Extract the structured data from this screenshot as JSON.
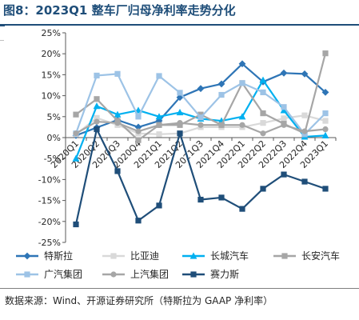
{
  "header": {
    "title": "图8：2023Q1 整车厂归母净利率走势分化"
  },
  "footer": {
    "source": "数据来源：Wind、开源证券研究所（特斯拉为 GAAP 净利率）"
  },
  "chart_data": {
    "type": "line",
    "categories": [
      "2020Q1",
      "2020Q2",
      "2020Q3",
      "2020Q4",
      "2021Q1",
      "2021Q2",
      "2021Q3",
      "2021Q4",
      "2022Q1",
      "2022Q2",
      "2022Q3",
      "2022Q4",
      "2023Q1"
    ],
    "ylim": [
      -25,
      25
    ],
    "y_ticks": [
      "-25%",
      "-20%",
      "-15%",
      "-10%",
      "-5%",
      "0%",
      "5%",
      "10%",
      "15%",
      "20%",
      "25%"
    ],
    "y_tick_values": [
      -25,
      -20,
      -15,
      -10,
      -5,
      0,
      5,
      10,
      15,
      20,
      25
    ],
    "grid": false,
    "legend_position": "bottom",
    "series": [
      {
        "name": "特斯拉",
        "color": "#2e75b6",
        "marker": "diamond",
        "values": [
          0.5,
          2.4,
          4.2,
          2.5,
          4.0,
          9.6,
          11.7,
          12.8,
          17.6,
          13.3,
          15.4,
          15.2,
          10.8
        ]
      },
      {
        "name": "比亚迪",
        "color": "#d9d9d9",
        "marker": "square",
        "values": [
          0.8,
          4.7,
          3.0,
          1.0,
          0.8,
          1.0,
          2.5,
          2.5,
          2.5,
          3.5,
          4.6,
          5.3,
          4.0
        ]
      },
      {
        "name": "长城汽车",
        "color": "#00b0f0",
        "marker": "triangle",
        "values": [
          -5.0,
          7.5,
          5.5,
          6.5,
          5.0,
          6.0,
          4.5,
          4.0,
          5.0,
          13.7,
          6.5,
          0.2,
          0.5
        ]
      },
      {
        "name": "长安汽车",
        "color": "#a6a6a6",
        "marker": "square",
        "values": [
          5.5,
          9.2,
          4.0,
          -0.6,
          3.0,
          3.0,
          5.5,
          3.0,
          13.0,
          5.8,
          3.3,
          1.0,
          20.1
        ]
      },
      {
        "name": "广汽集团",
        "color": "#9dc3e6",
        "marker": "square",
        "values": [
          1.0,
          14.8,
          15.2,
          5.0,
          14.7,
          10.7,
          4.8,
          10.2,
          13.0,
          10.8,
          7.3,
          0.8,
          5.8
        ]
      },
      {
        "name": "上汽集团",
        "color": "#a6a6a6",
        "marker": "circle",
        "values": [
          1.0,
          3.8,
          3.5,
          1.5,
          3.0,
          3.5,
          3.0,
          3.0,
          3.0,
          1.0,
          3.0,
          1.5,
          2.0
        ]
      },
      {
        "name": "赛力斯",
        "color": "#1f4e79",
        "marker": "square",
        "values": [
          -20.7,
          2.0,
          -8.0,
          -19.8,
          -16.2,
          1.0,
          -14.8,
          -14.3,
          -17.0,
          -12.2,
          -8.8,
          -10.5,
          -12.2
        ]
      }
    ]
  }
}
